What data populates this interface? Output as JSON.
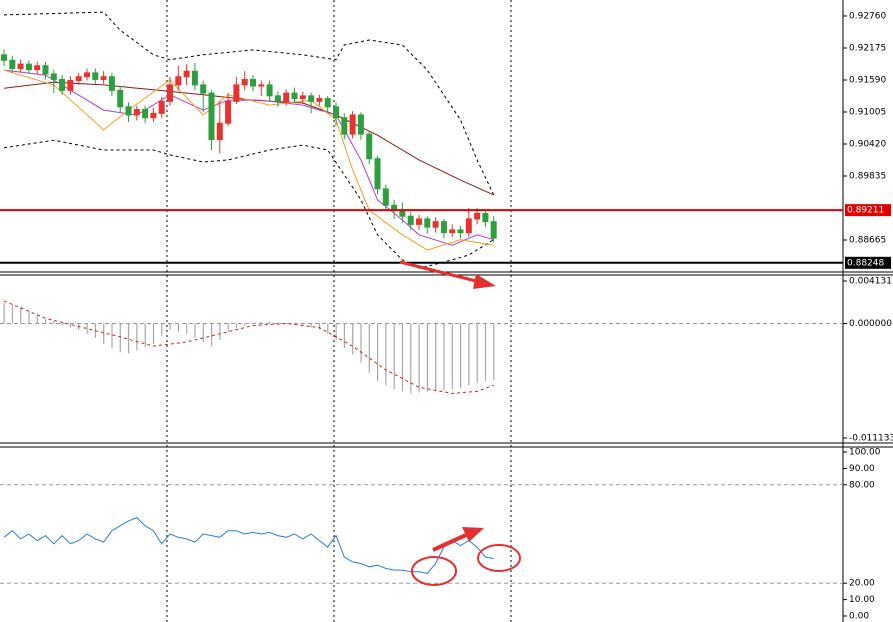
{
  "chart_data": [
    {
      "type": "candlestick",
      "up_color": "#e8322e",
      "down_color": "#2e9e3e",
      "open": [
        0.9205,
        0.9195,
        0.918,
        0.9188,
        0.9178,
        0.9185,
        0.917,
        0.916,
        0.914,
        0.9158,
        0.9165,
        0.9172,
        0.916,
        0.9165,
        0.914,
        0.911,
        0.9095,
        0.9105,
        0.909,
        0.9098,
        0.912,
        0.915,
        0.9165,
        0.9175,
        0.915,
        0.9135,
        0.905,
        0.908,
        0.912,
        0.915,
        0.916,
        0.9148,
        0.915,
        0.913,
        0.912,
        0.9135,
        0.9125,
        0.913,
        0.912,
        0.9125,
        0.911,
        0.909,
        0.906,
        0.9095,
        0.906,
        0.9015,
        0.896,
        0.893,
        0.892,
        0.891,
        0.8895,
        0.8905,
        0.889,
        0.89,
        0.888,
        0.8885,
        0.888,
        0.8905,
        0.8915,
        0.89
      ],
      "high": [
        0.9215,
        0.9203,
        0.9196,
        0.9195,
        0.9193,
        0.9192,
        0.9178,
        0.9168,
        0.9166,
        0.9172,
        0.918,
        0.918,
        0.9175,
        0.9172,
        0.9148,
        0.9118,
        0.9112,
        0.9112,
        0.9108,
        0.9128,
        0.9165,
        0.9185,
        0.9188,
        0.919,
        0.9158,
        0.914,
        0.912,
        0.9135,
        0.9165,
        0.9175,
        0.9168,
        0.9158,
        0.9158,
        0.9138,
        0.9142,
        0.9145,
        0.9138,
        0.9136,
        0.9132,
        0.913,
        0.9118,
        0.9098,
        0.9102,
        0.91,
        0.9065,
        0.902,
        0.8968,
        0.894,
        0.8935,
        0.8918,
        0.8912,
        0.891,
        0.8908,
        0.8905,
        0.8895,
        0.8892,
        0.8925,
        0.8925,
        0.8922,
        0.891
      ],
      "low": [
        0.9185,
        0.9172,
        0.9172,
        0.917,
        0.917,
        0.916,
        0.9135,
        0.9132,
        0.9132,
        0.915,
        0.9158,
        0.9152,
        0.9152,
        0.913,
        0.91,
        0.9082,
        0.9085,
        0.908,
        0.9082,
        0.909,
        0.9112,
        0.914,
        0.915,
        0.914,
        0.91,
        0.903,
        0.9025,
        0.9075,
        0.9115,
        0.914,
        0.9138,
        0.913,
        0.912,
        0.911,
        0.9112,
        0.9118,
        0.9115,
        0.9098,
        0.9112,
        0.91,
        0.9075,
        0.905,
        0.9052,
        0.905,
        0.9005,
        0.895,
        0.892,
        0.8905,
        0.8898,
        0.8885,
        0.8885,
        0.8878,
        0.888,
        0.887,
        0.8872,
        0.887,
        0.8872,
        0.8895,
        0.889,
        0.8862
      ],
      "close": [
        0.9195,
        0.918,
        0.9188,
        0.9178,
        0.9185,
        0.917,
        0.916,
        0.914,
        0.9158,
        0.9165,
        0.9172,
        0.916,
        0.9165,
        0.914,
        0.911,
        0.9095,
        0.9105,
        0.909,
        0.9098,
        0.912,
        0.915,
        0.9165,
        0.9175,
        0.915,
        0.9135,
        0.905,
        0.908,
        0.912,
        0.915,
        0.916,
        0.9148,
        0.915,
        0.913,
        0.912,
        0.9135,
        0.9125,
        0.913,
        0.912,
        0.9125,
        0.911,
        0.909,
        0.906,
        0.9095,
        0.906,
        0.9015,
        0.896,
        0.893,
        0.892,
        0.891,
        0.8895,
        0.8905,
        0.889,
        0.89,
        0.888,
        0.8885,
        0.888,
        0.8905,
        0.8915,
        0.89,
        0.887
      ],
      "overlays": [
        {
          "color": "#000000",
          "dash": true,
          "x": [
            0,
            12,
            14,
            18,
            20,
            24,
            30,
            36,
            40,
            41,
            44,
            48,
            51,
            55,
            57,
            59
          ],
          "values": [
            0.9278,
            0.9283,
            0.925,
            0.9205,
            0.9196,
            0.9205,
            0.9214,
            0.9205,
            0.9196,
            0.9223,
            0.9232,
            0.9223,
            0.9177,
            0.9086,
            0.9013,
            0.8949
          ]
        },
        {
          "color": "#000000",
          "dash": true,
          "x": [
            0,
            6,
            12,
            18,
            20,
            24,
            27,
            32,
            36,
            39,
            43,
            45,
            48,
            50,
            53,
            56,
            59
          ],
          "values": [
            0.9035,
            0.9049,
            0.9031,
            0.9031,
            0.9022,
            0.9009,
            0.9013,
            0.9031,
            0.904,
            0.9031,
            0.894,
            0.8876,
            0.883,
            0.8815,
            0.8826,
            0.8839,
            0.8867
          ]
        },
        {
          "color": "#8b1a1a",
          "dash": false,
          "x": [
            0,
            6,
            12,
            18,
            24,
            30,
            36,
            40,
            45,
            50,
            55,
            59
          ],
          "values": [
            0.9144,
            0.9155,
            0.915,
            0.9141,
            0.9132,
            0.9122,
            0.9117,
            0.9095,
            0.9058,
            0.9013,
            0.8976,
            0.8949
          ]
        },
        {
          "color": "#b040d0",
          "dash": false,
          "x": [
            0,
            5,
            12,
            16,
            20,
            24,
            27,
            31,
            36,
            40,
            43,
            45,
            48,
            50,
            54,
            57,
            59
          ],
          "values": [
            0.9177,
            0.9168,
            0.9104,
            0.9095,
            0.9132,
            0.9104,
            0.9122,
            0.9122,
            0.9113,
            0.9095,
            0.9013,
            0.894,
            0.8903,
            0.8876,
            0.8857,
            0.8876,
            0.8867
          ]
        },
        {
          "color": "#f0a020",
          "dash": false,
          "x": [
            0,
            6,
            12,
            15,
            20,
            24,
            27,
            32,
            37,
            40,
            42,
            44,
            48,
            51,
            55,
            59
          ],
          "values": [
            0.9177,
            0.915,
            0.9068,
            0.9104,
            0.9159,
            0.9095,
            0.9132,
            0.9113,
            0.9122,
            0.9086,
            0.8995,
            0.8921,
            0.8876,
            0.8848,
            0.8867,
            0.8857
          ]
        }
      ],
      "hlines": [
        {
          "value": 0.89211,
          "color": "#e00000"
        },
        {
          "value": 0.88248,
          "color": "#000000"
        }
      ],
      "ylim": [
        0.8808,
        0.93052
      ],
      "yticks": [
        {
          "value": 0.9276,
          "label": "0.92760"
        },
        0.92175,
        {
          "value": 0.9159,
          "label": "0.91590"
        },
        0.91005,
        {
          "value": 0.9042,
          "label": "0.90420"
        },
        0.89835,
        0.88665
      ]
    },
    {
      "type": "macd",
      "color": "#a8a8a8",
      "values": [
        0.002,
        0.0018,
        0.0016,
        0.0012,
        0.0008,
        0.0004,
        0.0002,
        -0.0002,
        -0.0004,
        -0.0006,
        -0.001,
        -0.0014,
        -0.002,
        -0.0024,
        -0.0028,
        -0.0029,
        -0.0026,
        -0.0023,
        -0.002,
        -0.0012,
        -0.0006,
        -0.0008,
        -0.001,
        -0.0014,
        -0.0018,
        -0.0022,
        -0.0016,
        -0.0008,
        -0.0004,
        -0.0002,
        0.0,
        0.0001,
        0.0002,
        0.0001,
        0.0,
        -0.0001,
        -0.0002,
        -0.0004,
        -0.0006,
        -0.001,
        -0.0016,
        -0.0024,
        -0.003,
        -0.0038,
        -0.0048,
        -0.0056,
        -0.006,
        -0.0064,
        -0.0066,
        -0.0068,
        -0.0067,
        -0.0066,
        -0.0066,
        -0.0065,
        -0.0064,
        -0.0063,
        -0.006,
        -0.0058,
        -0.0056,
        -0.0055
      ],
      "signal": {
        "color": "#d02020",
        "x": [
          0,
          5,
          10,
          14,
          18,
          22,
          26,
          30,
          34,
          38,
          42,
          46,
          50,
          54,
          57,
          59
        ],
        "values": [
          0.0022,
          0.0005,
          -0.0005,
          -0.0013,
          -0.0022,
          -0.0018,
          -0.001,
          -0.0002,
          0.0,
          -0.0004,
          -0.0022,
          -0.0045,
          -0.0062,
          -0.0068,
          -0.0066,
          -0.006
        ]
      },
      "levels": [
        0
      ],
      "ylim": [
        -0.011133,
        0.004131
      ],
      "yticks": [
        0.004131,
        {
          "value": 0,
          "label": "0.000000"
        },
        -0.011133
      ]
    },
    {
      "type": "line",
      "color": "#2a7fd4",
      "values": [
        48,
        52,
        47,
        50,
        46,
        49,
        44,
        49,
        44,
        46,
        50,
        47,
        45,
        52,
        55,
        58,
        60,
        55,
        52,
        44,
        50,
        48,
        47,
        45,
        50,
        49,
        48,
        52,
        52,
        50,
        51,
        50,
        51,
        49,
        48,
        50,
        47,
        50,
        46,
        42,
        49,
        36,
        33,
        32,
        30,
        31,
        29,
        28,
        28,
        27,
        27,
        26,
        32,
        42,
        46,
        43,
        46,
        42,
        36,
        35
      ],
      "levels": [
        80,
        20
      ],
      "ylim": [
        0,
        100
      ],
      "yticks": [
        {
          "value": 100,
          "label": "100.00"
        },
        {
          "value": 90,
          "label": "90.00"
        },
        {
          "value": 80,
          "label": "80.00"
        },
        {
          "value": 20,
          "label": "20.00"
        },
        {
          "value": 10,
          "label": "10.00"
        },
        {
          "value": 0,
          "label": "0.00"
        }
      ]
    }
  ]
}
